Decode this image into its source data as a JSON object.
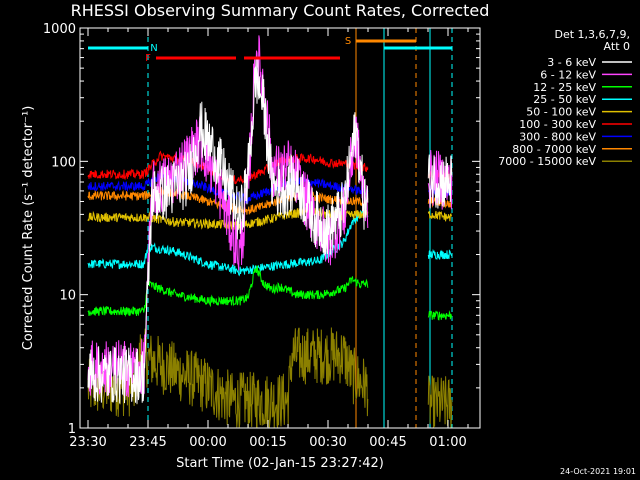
{
  "chart_data": {
    "type": "line",
    "title": "RHESSI Observing Summary Count Rates, Corrected",
    "xlabel": "Start Time (02-Jan-15 23:27:42)",
    "ylabel": "Corrected Count Rate (s⁻¹ detector⁻¹)",
    "yscale": "log",
    "ylim": [
      1,
      1000
    ],
    "xlim_minutes": [
      -2,
      98
    ],
    "x_tick_labels": [
      "23:30",
      "23:45",
      "00:00",
      "00:15",
      "00:30",
      "00:45",
      "01:00"
    ],
    "x_tick_minutes": [
      0,
      15,
      30,
      45,
      60,
      75,
      90
    ],
    "y_tick_labels": [
      "1",
      "10",
      "100",
      "1000"
    ],
    "y_tick_values": [
      1,
      10,
      100,
      1000
    ],
    "legend_header": [
      "Det 1,3,6,7,9,",
      "Att 0"
    ],
    "legend_position": "right",
    "footer_date": "24-Oct-2021 19:01",
    "series": [
      {
        "name": "3 - 6 keV",
        "color": "#ffffff",
        "x": [
          0,
          2,
          14,
          16,
          20,
          25,
          28,
          32,
          36,
          38,
          40,
          42,
          44,
          46,
          48,
          50,
          52,
          56,
          60,
          64,
          66,
          67,
          68,
          69,
          70,
          85,
          86,
          90,
          91
        ],
        "y": [
          2.5,
          2.5,
          2.5,
          55,
          60,
          75,
          180,
          110,
          55,
          35,
          80,
          450,
          250,
          70,
          60,
          65,
          70,
          40,
          30,
          45,
          120,
          170,
          95,
          50,
          50,
          70,
          75,
          70,
          72
        ]
      },
      {
        "name": "6 - 12 keV",
        "color": "#ff44ff",
        "x": [
          0,
          2,
          14,
          16,
          20,
          24,
          28,
          32,
          36,
          38,
          40,
          42,
          44,
          46,
          48,
          50,
          52,
          56,
          60,
          64,
          66,
          67,
          68,
          69,
          70,
          85,
          86,
          90,
          91
        ],
        "y": [
          2.8,
          2.8,
          2.8,
          60,
          70,
          95,
          140,
          75,
          30,
          20,
          60,
          700,
          350,
          90,
          80,
          90,
          75,
          40,
          25,
          40,
          110,
          160,
          90,
          50,
          50,
          70,
          75,
          70,
          72
        ]
      },
      {
        "name": "12 - 25 keV",
        "color": "#00ff00",
        "x": [
          0,
          14,
          15,
          22,
          30,
          38,
          40,
          42,
          44,
          46,
          48,
          52,
          58,
          64,
          66,
          68,
          70,
          85,
          86,
          90,
          91
        ],
        "y": [
          7.5,
          7.5,
          12,
          10,
          9,
          9,
          9.5,
          16,
          12,
          11,
          11.5,
          10,
          10,
          11,
          13,
          12,
          12,
          7,
          7,
          7,
          7
        ]
      },
      {
        "name": "25 - 50 keV",
        "color": "#00ffff",
        "x": [
          0,
          14,
          15,
          22,
          30,
          38,
          44,
          50,
          58,
          64,
          66,
          68,
          70,
          85,
          86,
          90,
          91
        ],
        "y": [
          17,
          17,
          23,
          21,
          17,
          15,
          16,
          17,
          18,
          25,
          35,
          40,
          40,
          20,
          20,
          20,
          20
        ]
      },
      {
        "name": "50 - 100 keV",
        "color": "#e0c000",
        "x": [
          0,
          15,
          22,
          30,
          38,
          44,
          50,
          56,
          60,
          64,
          68,
          70,
          85,
          86,
          90,
          91
        ],
        "y": [
          38,
          38,
          35,
          34,
          33,
          36,
          40,
          42,
          40,
          39,
          40,
          40,
          40,
          40,
          38,
          38
        ]
      },
      {
        "name": "100 - 300 keV",
        "color": "#ff0000",
        "x": [
          0,
          14,
          18,
          22,
          28,
          32,
          36,
          40,
          44,
          48,
          52,
          56,
          60,
          66,
          68,
          70,
          85,
          86,
          90,
          91
        ],
        "y": [
          80,
          80,
          110,
          105,
          95,
          80,
          72,
          75,
          85,
          100,
          105,
          105,
          98,
          95,
          90,
          90,
          80,
          80,
          78,
          78
        ]
      },
      {
        "name": "300 - 800 keV",
        "color": "#0000ff",
        "x": [
          0,
          14,
          18,
          22,
          28,
          34,
          40,
          44,
          48,
          52,
          56,
          60,
          66,
          68,
          70,
          85,
          86,
          90,
          91
        ],
        "y": [
          65,
          65,
          78,
          75,
          66,
          57,
          52,
          58,
          66,
          70,
          70,
          66,
          62,
          60,
          60,
          62,
          62,
          58,
          58
        ]
      },
      {
        "name": "800 - 7000 keV",
        "color": "#ff8800",
        "x": [
          0,
          14,
          18,
          22,
          28,
          34,
          40,
          44,
          48,
          52,
          56,
          60,
          66,
          68,
          70,
          85,
          86,
          90,
          91
        ],
        "y": [
          55,
          55,
          60,
          58,
          52,
          46,
          43,
          46,
          52,
          55,
          55,
          52,
          50,
          50,
          50,
          50,
          50,
          48,
          48
        ]
      },
      {
        "name": "7000 - 15000 keV",
        "color": "#8b8000",
        "x": [
          0,
          12,
          13,
          28,
          36,
          50,
          51,
          64,
          66,
          70,
          85,
          86,
          90,
          91
        ],
        "y": [
          2,
          2,
          3.5,
          2.2,
          1.6,
          1.6,
          3.5,
          3.5,
          2.5,
          2,
          1.5,
          1.5,
          1.5,
          1.5
        ]
      }
    ],
    "state_bars": [
      {
        "label": "N",
        "color": "#00ffff",
        "x_start": 0,
        "x_end": 15,
        "level": 1
      },
      {
        "label": "",
        "color": "#00ffff",
        "x_start": 74,
        "x_end": 91,
        "level": 1
      },
      {
        "label": "F",
        "color": "#ff0000",
        "x_start": 17,
        "x_end": 37,
        "level": 2
      },
      {
        "label": "",
        "color": "#ff0000",
        "x_start": 39,
        "x_end": 63,
        "level": 2
      },
      {
        "label": "S",
        "color": "#ff8800",
        "x_start": 67,
        "x_end": 82,
        "level": 0
      }
    ],
    "vlines": [
      {
        "x": 15,
        "color": "#00ffff",
        "style": "dashed"
      },
      {
        "x": 91,
        "color": "#00ffff",
        "style": "dashed"
      },
      {
        "x": 67,
        "color": "#ff8800",
        "style": "solid"
      },
      {
        "x": 82,
        "color": "#ff8800",
        "style": "dashed"
      },
      {
        "x": 74,
        "color": "#00ffff",
        "style": "solid"
      },
      {
        "x": 85.5,
        "color": "#00ffff",
        "style": "solid"
      }
    ],
    "gaps": [
      [
        70,
        85
      ]
    ],
    "grid": false
  }
}
